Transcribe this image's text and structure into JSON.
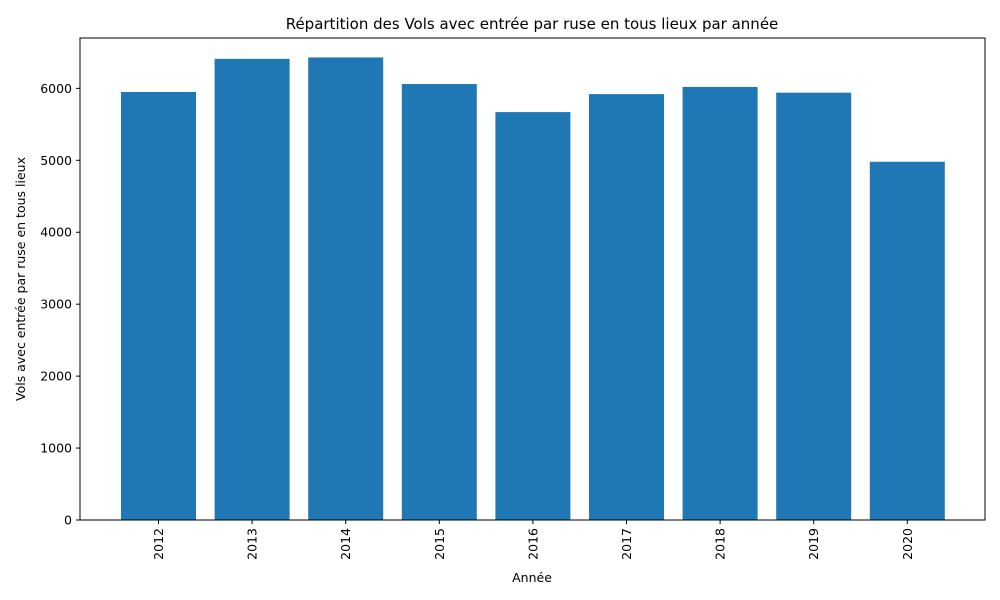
{
  "chart_data": {
    "type": "bar",
    "title": "Répartition des Vols avec entrée par ruse en tous lieux par année",
    "xlabel": "Année",
    "ylabel": "Vols avec entrée par ruse en tous lieux",
    "categories": [
      "2012",
      "2013",
      "2014",
      "2015",
      "2016",
      "2017",
      "2018",
      "2019",
      "2020"
    ],
    "values": [
      5950,
      6410,
      6430,
      6060,
      5670,
      5920,
      6020,
      5940,
      4980
    ],
    "ylim": [
      0,
      6700
    ],
    "yticks": [
      "0",
      "1000",
      "2000",
      "3000",
      "4000",
      "5000",
      "6000"
    ],
    "bar_color": "#1f77b4",
    "grid": false,
    "legend": "none"
  }
}
